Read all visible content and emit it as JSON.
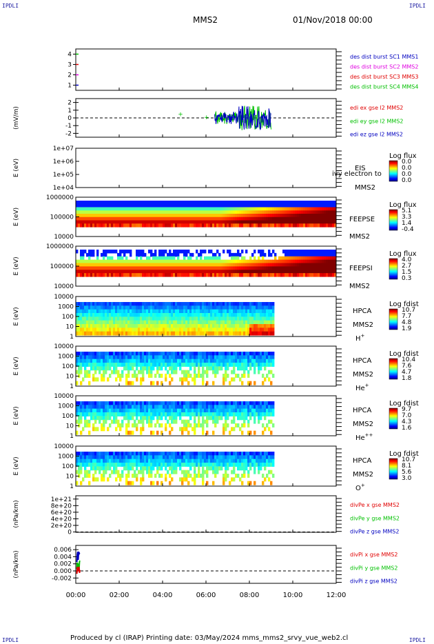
{
  "corners": {
    "tl": "IPDLI",
    "tr": "IPDLI",
    "bl": "IPDLI",
    "br": "IPDLI"
  },
  "header": {
    "spacecraft": "MMS2",
    "date": "01/Nov/2018 00:00"
  },
  "footer": {
    "text": "Produced by cl (IRAP)   Printing date: 03/May/2024   mms_mms2_srvy_vue_web2.cl"
  },
  "time_axis": {
    "ticks": [
      "00:00",
      "02:00",
      "04:00",
      "06:00",
      "08:00",
      "10:00",
      "12:00"
    ],
    "range_hours": [
      0,
      12
    ],
    "data_end_hours": 9.1
  },
  "colors": {
    "red": "#e00000",
    "magenta": "#e000e0",
    "blue": "#0000c0",
    "green": "#00c000",
    "cyan": "#00b0b0"
  },
  "chart_data": [
    {
      "type": "line",
      "name": "burst-flags",
      "yticks": [
        "1",
        "2",
        "3",
        "4"
      ],
      "ylim": [
        0.5,
        4.5
      ],
      "legend": [
        {
          "text": "des dist burst SC1 MMS1",
          "color": "#0000c0"
        },
        {
          "text": "des dist burst SC2 MMS2",
          "color": "#e000e0"
        },
        {
          "text": "des dist burst SC3 MMS3",
          "color": "#e00000"
        },
        {
          "text": "des dist burst SC4 MMS4",
          "color": "#00c000"
        }
      ]
    },
    {
      "type": "line",
      "name": "edi-e",
      "ylabel": "(mV/m)",
      "yticks": [
        "-2",
        "-1",
        "0",
        "1",
        "2"
      ],
      "ylim": [
        -2.5,
        2.5
      ],
      "legend": [
        {
          "text": "edi ex gse l2 MMS2",
          "color": "#e00000"
        },
        {
          "text": "edi ey gse l2 MMS2",
          "color": "#00c000"
        },
        {
          "text": "edi ez gse l2 MMS2",
          "color": "#0000c0"
        }
      ]
    },
    {
      "type": "heatmap",
      "name": "EIS",
      "ylabel": "E (eV)",
      "yticks": [
        "1e+04",
        "1e+05",
        "1e+06",
        "1e+07"
      ],
      "side": [
        "EIS",
        "MMS2"
      ],
      "overlay": "ivy electron to",
      "cbar_title": "Log flux",
      "cbar": [
        "0.0",
        "0.0",
        "0.0",
        "0.0"
      ]
    },
    {
      "type": "heatmap",
      "name": "FEEPSE",
      "ylabel": "E (eV)",
      "yticks": [
        "10000",
        "100000",
        "1000000"
      ],
      "side": [
        "FEEPSE",
        "MMS2"
      ],
      "cbar_title": "Log flux",
      "cbar": [
        "5.1",
        "3.3",
        "1.4",
        "-0.4"
      ]
    },
    {
      "type": "heatmap",
      "name": "FEEPSI",
      "ylabel": "E (eV)",
      "yticks": [
        "10000",
        "100000",
        "1000000"
      ],
      "side": [
        "FEEPSI",
        "MMS2"
      ],
      "cbar_title": "Log flux",
      "cbar": [
        "4.0",
        "2.7",
        "1.5",
        "0.3"
      ]
    },
    {
      "type": "heatmap",
      "name": "HPCA-H",
      "ylabel": "E (eV)",
      "yticks": [
        "1",
        "10",
        "100",
        "1000",
        "10000"
      ],
      "side": [
        "HPCA",
        "MMS2"
      ],
      "species": "H",
      "charge": "+",
      "cbar_title": "Log fdist",
      "cbar": [
        "10.7",
        "7.7",
        "4.8",
        "1.9"
      ]
    },
    {
      "type": "heatmap",
      "name": "HPCA-He1",
      "ylabel": "E (eV)",
      "yticks": [
        "1",
        "10",
        "100",
        "1000",
        "10000"
      ],
      "side": [
        "HPCA",
        "MMS2"
      ],
      "species": "He",
      "charge": "+",
      "cbar_title": "Log fdist",
      "cbar": [
        "10.4",
        "7.6",
        "4.7",
        "1.8"
      ]
    },
    {
      "type": "heatmap",
      "name": "HPCA-He2",
      "ylabel": "E (eV)",
      "yticks": [
        "1",
        "10",
        "100",
        "1000",
        "10000"
      ],
      "side": [
        "HPCA",
        "MMS2"
      ],
      "species": "He",
      "charge": "++",
      "cbar_title": "Log fdist",
      "cbar": [
        "9.7",
        "7.0",
        "4.3",
        "1.6"
      ]
    },
    {
      "type": "heatmap",
      "name": "HPCA-O",
      "ylabel": "E (eV)",
      "yticks": [
        "1",
        "10",
        "100",
        "1000",
        "10000"
      ],
      "side": [
        "HPCA",
        "MMS2"
      ],
      "species": "O",
      "charge": "+",
      "cbar_title": "Log fdist",
      "cbar": [
        "10.7",
        "8.1",
        "5.6",
        "3.0"
      ]
    },
    {
      "type": "line",
      "name": "divPe",
      "ylabel": "(nPa/km)",
      "yticks": [
        "0",
        "2e+20",
        "4e+20",
        "6e+20",
        "8e+20",
        "1e+21"
      ],
      "ylim": [
        -1e+19,
        1.1e+21
      ],
      "legend": [
        {
          "text": "divPe x gse MMS2",
          "color": "#e00000"
        },
        {
          "text": "divPe y gse MMS2",
          "color": "#00c000"
        },
        {
          "text": "divPe z gse MMS2",
          "color": "#0000c0"
        }
      ]
    },
    {
      "type": "line",
      "name": "divPi",
      "ylabel": "(nPa/km)",
      "yticks": [
        "-0.002",
        "0.000",
        "0.002",
        "0.004",
        "0.006"
      ],
      "ylim": [
        -0.0035,
        0.0072
      ],
      "legend": [
        {
          "text": "divPi x gse MMS2",
          "color": "#e00000"
        },
        {
          "text": "divPi y gse MMS2",
          "color": "#00c000"
        },
        {
          "text": "divPi z gse MMS2",
          "color": "#0000c0"
        }
      ]
    }
  ]
}
